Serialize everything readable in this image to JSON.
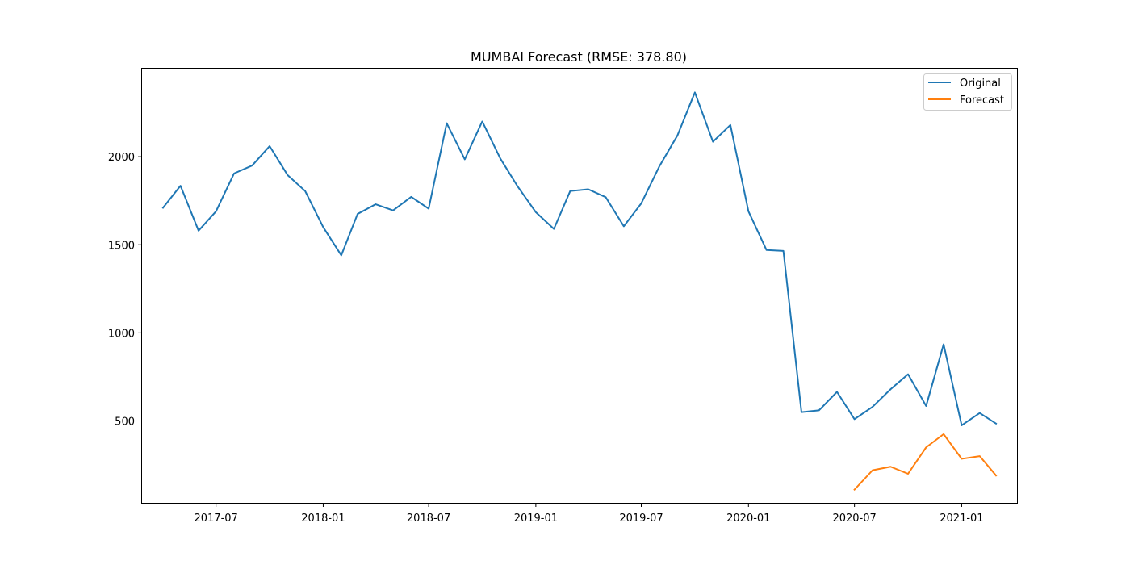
{
  "chart_data": {
    "type": "line",
    "title": "MUMBAI Forecast (RMSE: 378.80)",
    "xlabel": "",
    "ylabel": "",
    "x_ticks": [
      "2017-07",
      "2018-01",
      "2018-07",
      "2019-01",
      "2019-07",
      "2020-01",
      "2020-07",
      "2021-01"
    ],
    "y_ticks": [
      500,
      1000,
      1500,
      2000
    ],
    "xlim": [
      "2017-02-24",
      "2021-04-06"
    ],
    "ylim": [
      35,
      2500
    ],
    "grid": false,
    "legend": "top-right",
    "series": [
      {
        "name": "Original",
        "color": "#1f77b4",
        "x": [
          "2017-04-01",
          "2017-05-01",
          "2017-06-01",
          "2017-07-01",
          "2017-08-01",
          "2017-09-01",
          "2017-10-01",
          "2017-11-01",
          "2017-12-01",
          "2018-01-01",
          "2018-02-01",
          "2018-03-01",
          "2018-04-01",
          "2018-05-01",
          "2018-06-01",
          "2018-07-01",
          "2018-08-01",
          "2018-09-01",
          "2018-10-01",
          "2018-11-01",
          "2018-12-01",
          "2019-01-01",
          "2019-02-01",
          "2019-03-01",
          "2019-04-01",
          "2019-05-01",
          "2019-06-01",
          "2019-07-01",
          "2019-08-01",
          "2019-09-01",
          "2019-10-01",
          "2019-11-01",
          "2019-12-01",
          "2020-01-01",
          "2020-02-01",
          "2020-03-01",
          "2020-04-01",
          "2020-05-01",
          "2020-06-01",
          "2020-07-01",
          "2020-08-01",
          "2020-09-01",
          "2020-10-01",
          "2020-11-01",
          "2020-12-01",
          "2021-01-01",
          "2021-02-01",
          "2021-03-01"
        ],
        "values": [
          1710,
          1835,
          1580,
          1690,
          1905,
          1950,
          2060,
          1895,
          1805,
          1600,
          1440,
          1675,
          1730,
          1695,
          1772,
          1705,
          2190,
          1985,
          2200,
          1990,
          1830,
          1685,
          1590,
          1805,
          1815,
          1770,
          1605,
          1735,
          1945,
          2120,
          2365,
          2085,
          2180,
          1690,
          1470,
          1465,
          550,
          560,
          665,
          510,
          580,
          680,
          765,
          585,
          935,
          475,
          545,
          485
        ]
      },
      {
        "name": "Forecast",
        "color": "#ff7f0e",
        "x": [
          "2020-07-01",
          "2020-08-01",
          "2020-09-01",
          "2020-10-01",
          "2020-11-01",
          "2020-12-01",
          "2021-01-01",
          "2021-02-01",
          "2021-03-01"
        ],
        "values": [
          110,
          220,
          240,
          200,
          350,
          425,
          285,
          300,
          190
        ]
      }
    ]
  }
}
